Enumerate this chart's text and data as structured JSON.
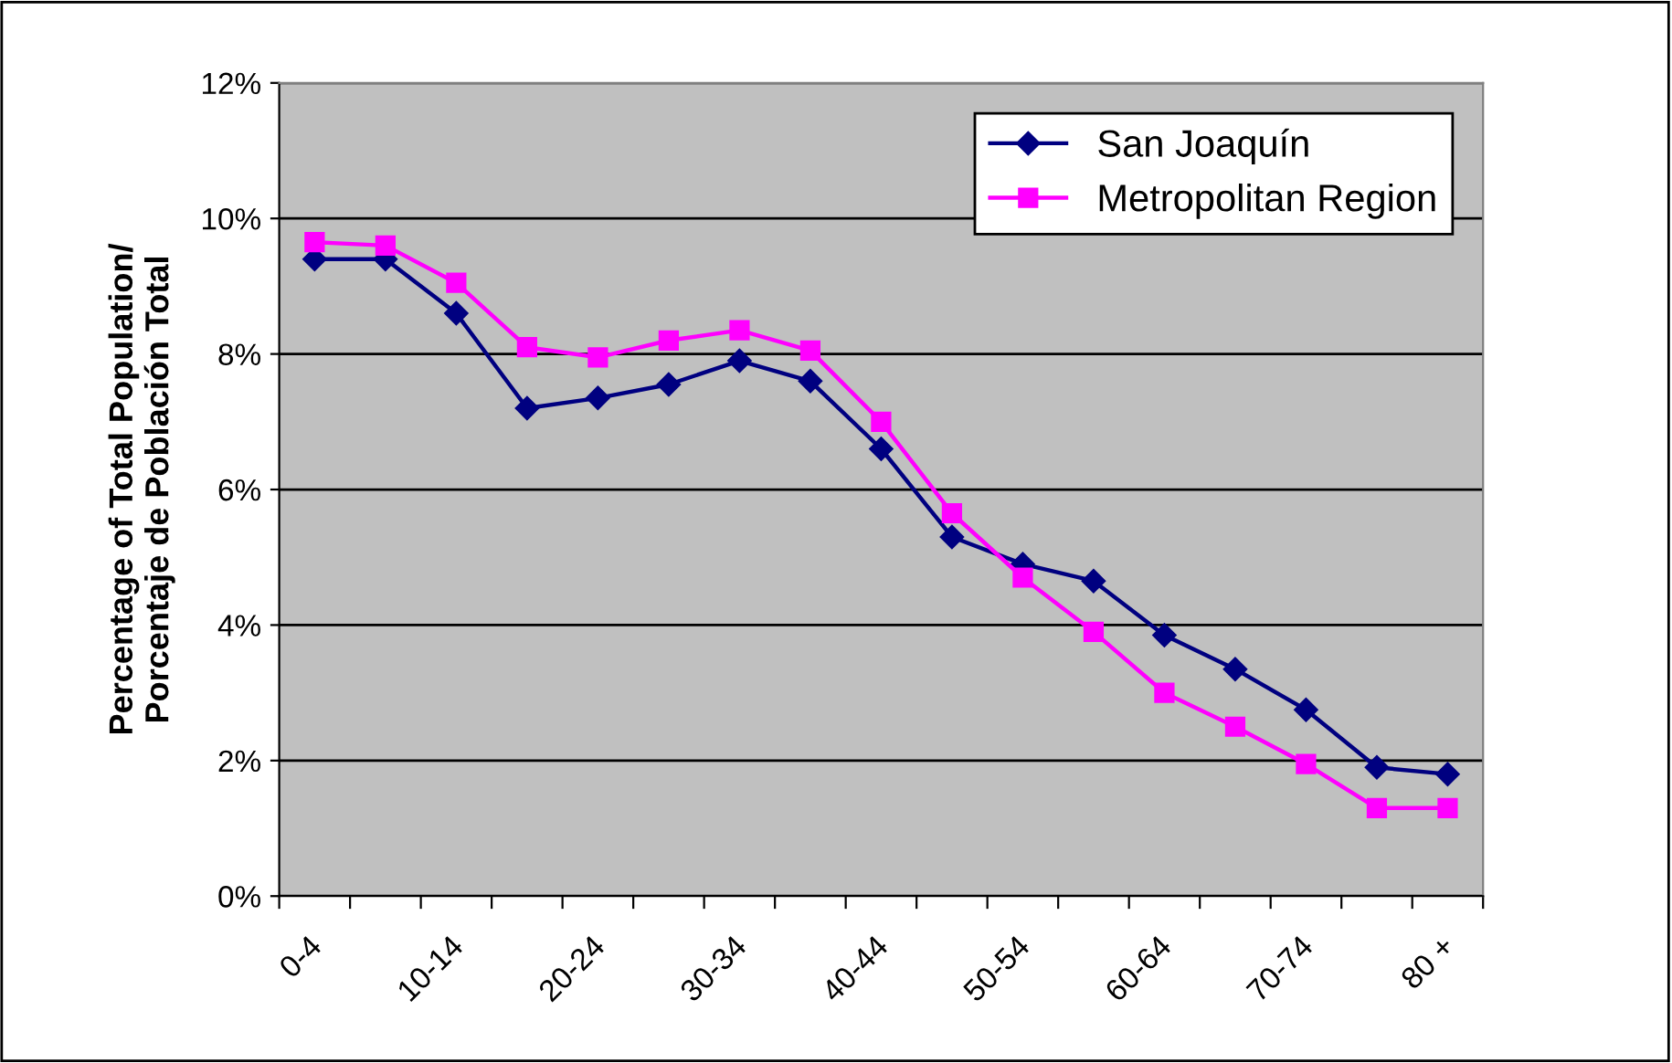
{
  "chart_data": {
    "type": "line",
    "ylabel": "Percentage of Total Population/\nPorcentaje de Población Total",
    "categories": [
      "0-4",
      null,
      "10-14",
      null,
      "20-24",
      null,
      "30-34",
      null,
      "40-44",
      null,
      "50-54",
      null,
      "60-64",
      null,
      "70-74",
      null,
      "80 +"
    ],
    "series": [
      {
        "name": "San Joaquín",
        "color": "#000080",
        "marker": "diamond",
        "values": [
          9.4,
          9.4,
          8.6,
          7.2,
          7.35,
          7.55,
          7.9,
          7.6,
          6.6,
          5.3,
          4.9,
          4.65,
          3.85,
          3.35,
          2.75,
          1.9,
          1.8
        ]
      },
      {
        "name": "Metropolitan Region",
        "color": "#ff00ff",
        "marker": "square",
        "values": [
          9.65,
          9.6,
          9.05,
          8.1,
          7.95,
          8.2,
          8.35,
          8.05,
          7.0,
          5.65,
          4.7,
          3.9,
          3.0,
          2.5,
          1.95,
          1.3,
          1.3
        ]
      }
    ],
    "ylim": [
      0,
      12
    ],
    "yticks": [
      {
        "value": 0,
        "label": "0%"
      },
      {
        "value": 2,
        "label": "2%"
      },
      {
        "value": 4,
        "label": "4%"
      },
      {
        "value": 6,
        "label": "6%"
      },
      {
        "value": 8,
        "label": "8%"
      },
      {
        "value": 10,
        "label": "10%"
      },
      {
        "value": 12,
        "label": "12%"
      }
    ],
    "grid": "y",
    "legend": "top right",
    "line_style": "solid"
  }
}
